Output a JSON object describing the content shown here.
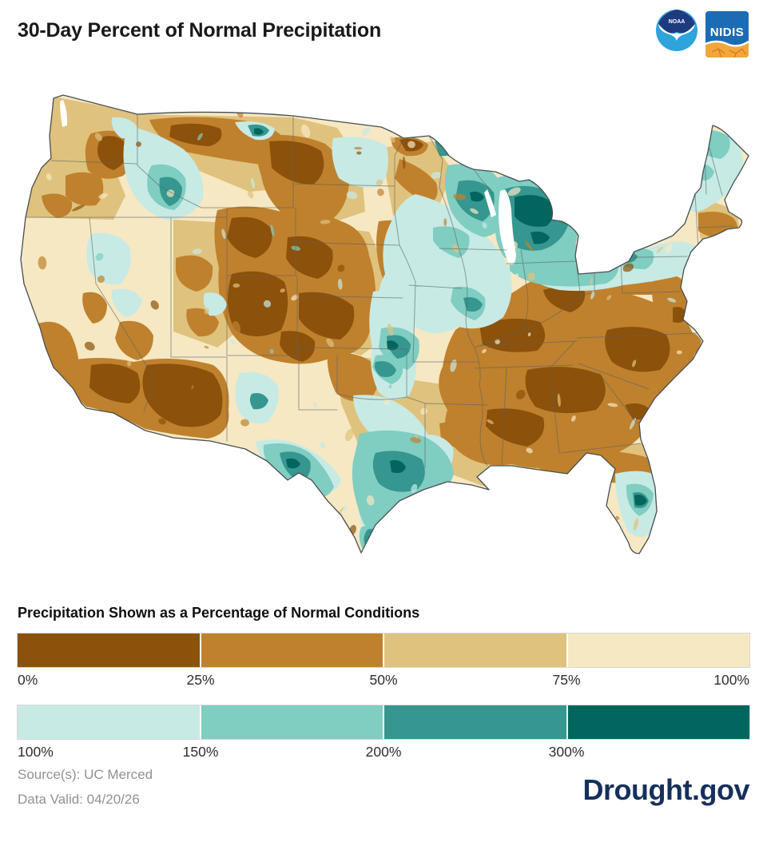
{
  "header": {
    "title": "30-Day Percent of Normal Precipitation",
    "noaa_label": "NOAA",
    "nidis_label": "NIDIS"
  },
  "map": {
    "description": "Contiguous United States map shaded by 30-day percent of normal precipitation",
    "palette": {
      "p0_25": "#8c510a",
      "p25_50": "#bf812d",
      "p50_75": "#dfc27d",
      "p75_100": "#f6e8c3",
      "p100_150": "#c7eae5",
      "p150_200": "#80cdc1",
      "p200_300": "#35978f",
      "p300_plus": "#01665e"
    },
    "state_border_color": "#5c6466",
    "outline_color": "#474f52"
  },
  "legend": {
    "title": "Precipitation Shown as a Percentage of Normal Conditions",
    "below_normal": {
      "colors": [
        "#8c510a",
        "#bf812d",
        "#dfc27d",
        "#f6e8c3"
      ],
      "labels": [
        "0%",
        "25%",
        "50%",
        "75%",
        "100%"
      ],
      "last_label_at_end": true
    },
    "above_normal": {
      "colors": [
        "#c7eae5",
        "#80cdc1",
        "#35978f",
        "#01665e"
      ],
      "labels": [
        "100%",
        "150%",
        "200%",
        "300%"
      ],
      "last_label_at_end": false
    }
  },
  "footer": {
    "source": "Source(s): UC Merced",
    "data_valid": "Data Valid: 04/20/26",
    "brand": "Drought.gov"
  }
}
